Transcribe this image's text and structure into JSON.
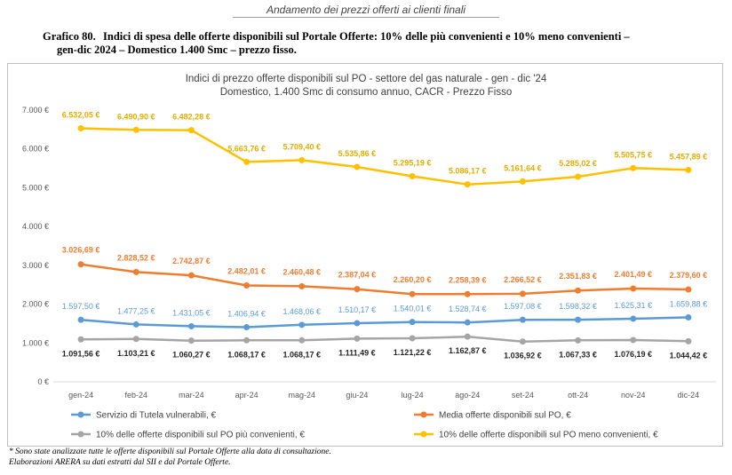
{
  "page": {
    "header": "Andamento dei prezzi offerti ai clienti finali",
    "figure_number": "Grafico 80.",
    "figure_title_line1": "Indici di spesa delle offerte disponibili sul Portale Offerte: 10% delle più convenienti e 10% meno convenienti –",
    "figure_title_line2": "gen-dic 2024 – Domestico 1.400 Smc – prezzo fisso.",
    "footnote1": "* Sono state analizzate tutte le offerte disponibili sul Portale Offerte alla data di consultazione.",
    "footnote2": "Elaborazioni ARERA su dati estratti dal SII e dal Portale Offerte."
  },
  "chart_data": {
    "type": "line",
    "title": "Indici di prezzo offerte disponibili sul PO - settore del gas naturale - gen - dic '24",
    "subtitle": "Domestico, 1.400 Smc di consumo annuo, CACR - Prezzo Fisso",
    "categories": [
      "gen-24",
      "feb-24",
      "mar-24",
      "apr-24",
      "mag-24",
      "giu-24",
      "lug-24",
      "ago-24",
      "set-24",
      "ott-24",
      "nov-24",
      "dic-24"
    ],
    "ylim": [
      0,
      7000
    ],
    "yticks": [
      0,
      1000,
      2000,
      3000,
      4000,
      5000,
      6000,
      7000
    ],
    "ytick_labels": [
      "0 €",
      "1.000 €",
      "2.000 €",
      "3.000 €",
      "4.000 €",
      "5.000 €",
      "6.000 €",
      "7.000 €"
    ],
    "grid": false,
    "legend_position": "bottom",
    "series": [
      {
        "name": "Servizio di Tutela vulnerabili, €",
        "color": "#5b9bd5",
        "values": [
          1597.5,
          1477.25,
          1431.05,
          1406.94,
          1468.06,
          1510.17,
          1540.01,
          1528.74,
          1597.08,
          1598.32,
          1625.31,
          1659.88
        ],
        "labels": [
          "1.597,50 €",
          "1.477,25 €",
          "1.431,05 €",
          "1.406,94 €",
          "1.468,06 €",
          "1.510,17 €",
          "1.540,01 €",
          "1.528,74 €",
          "1.597,08 €",
          "1.598,32 €",
          "1.625,31 €",
          "1.659,88 €"
        ]
      },
      {
        "name": "Media offerte disponibili sul PO, €",
        "color": "#ed7d31",
        "values": [
          3026.69,
          2828.52,
          2742.87,
          2482.01,
          2460.48,
          2387.04,
          2260.2,
          2258.39,
          2266.52,
          2351.83,
          2401.49,
          2379.6
        ],
        "labels": [
          "3.026,69 €",
          "2.828,52 €",
          "2.742,87 €",
          "2.482,01 €",
          "2.460,48 €",
          "2.387,04 €",
          "2.260,20 €",
          "2.258,39 €",
          "2.266,52 €",
          "2.351,83 €",
          "2.401,49 €",
          "2.379,60 €"
        ]
      },
      {
        "name": "10% delle offerte disponibili sul PO più convenienti, €",
        "color": "#a5a5a5",
        "values": [
          1091.56,
          1103.21,
          1060.27,
          1068.17,
          1068.17,
          1111.49,
          1121.22,
          1162.87,
          1036.92,
          1067.33,
          1076.19,
          1044.42
        ],
        "labels": [
          "1.091,56 €",
          "1.103,21 €",
          "1.060,27 €",
          "1.068,17 €",
          "1.068,17 €",
          "1.111,49 €",
          "1.121,22 €",
          "1.162,87 €",
          "1.036,92 €",
          "1.067,33 €",
          "1.076,19 €",
          "1.044,42 €"
        ]
      },
      {
        "name": "10% delle offerte disponibili sul PO meno convenienti, €",
        "color": "#ffc000",
        "values": [
          6532.05,
          6490.9,
          6482.28,
          5663.76,
          5709.4,
          5535.86,
          5295.19,
          5086.17,
          5161.64,
          5285.02,
          5505.75,
          5457.89
        ],
        "labels": [
          "6.532,05 €",
          "6.490,90 €",
          "6.482,28 €",
          "5.663,76 €",
          "5.709,40 €",
          "5.535,86 €",
          "5.295,19 €",
          "5.086,17 €",
          "5.161,64 €",
          "5.285,02 €",
          "5.505,75 €",
          "5.457,89 €"
        ]
      }
    ]
  }
}
